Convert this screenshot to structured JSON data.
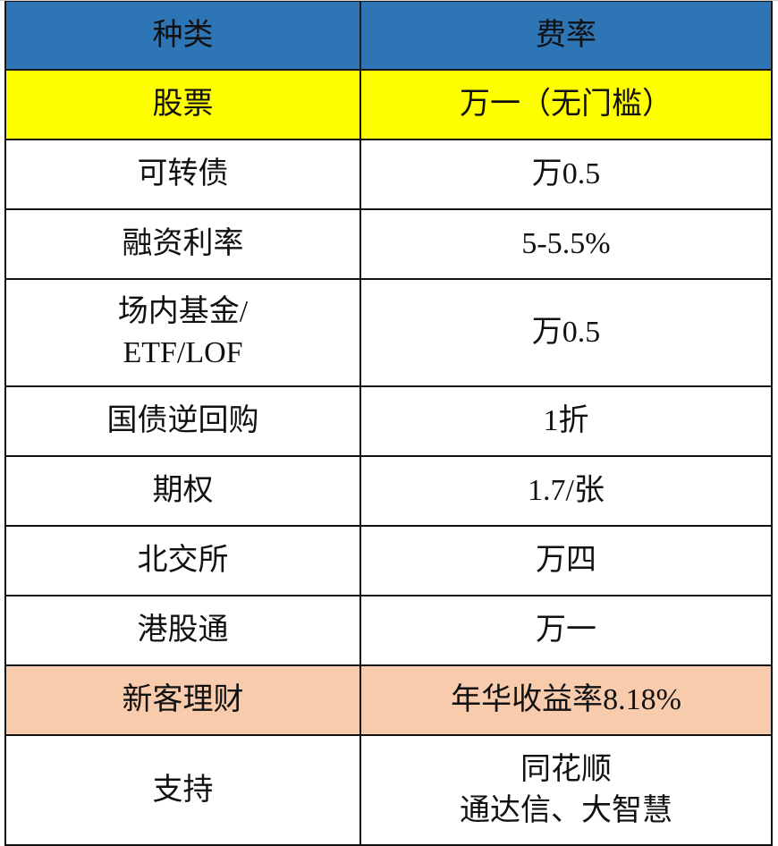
{
  "table": {
    "header": [
      "种类",
      "费率"
    ],
    "rows": [
      [
        "股票",
        "万一（无门槛）"
      ],
      [
        "可转债",
        "万0.5"
      ],
      [
        "融资利率",
        "5-5.5%"
      ],
      [
        [
          "场内基金/",
          "ETF/LOF"
        ],
        "万0.5"
      ],
      [
        "国债逆回购",
        "1折"
      ],
      [
        "期权",
        "1.7/张"
      ],
      [
        "北交所",
        "万四"
      ],
      [
        "港股通",
        "万一"
      ],
      [
        "新客理财",
        "年华收益率8.18%"
      ],
      [
        "支持",
        [
          "同花顺",
          "通达信、大智慧"
        ]
      ]
    ]
  }
}
